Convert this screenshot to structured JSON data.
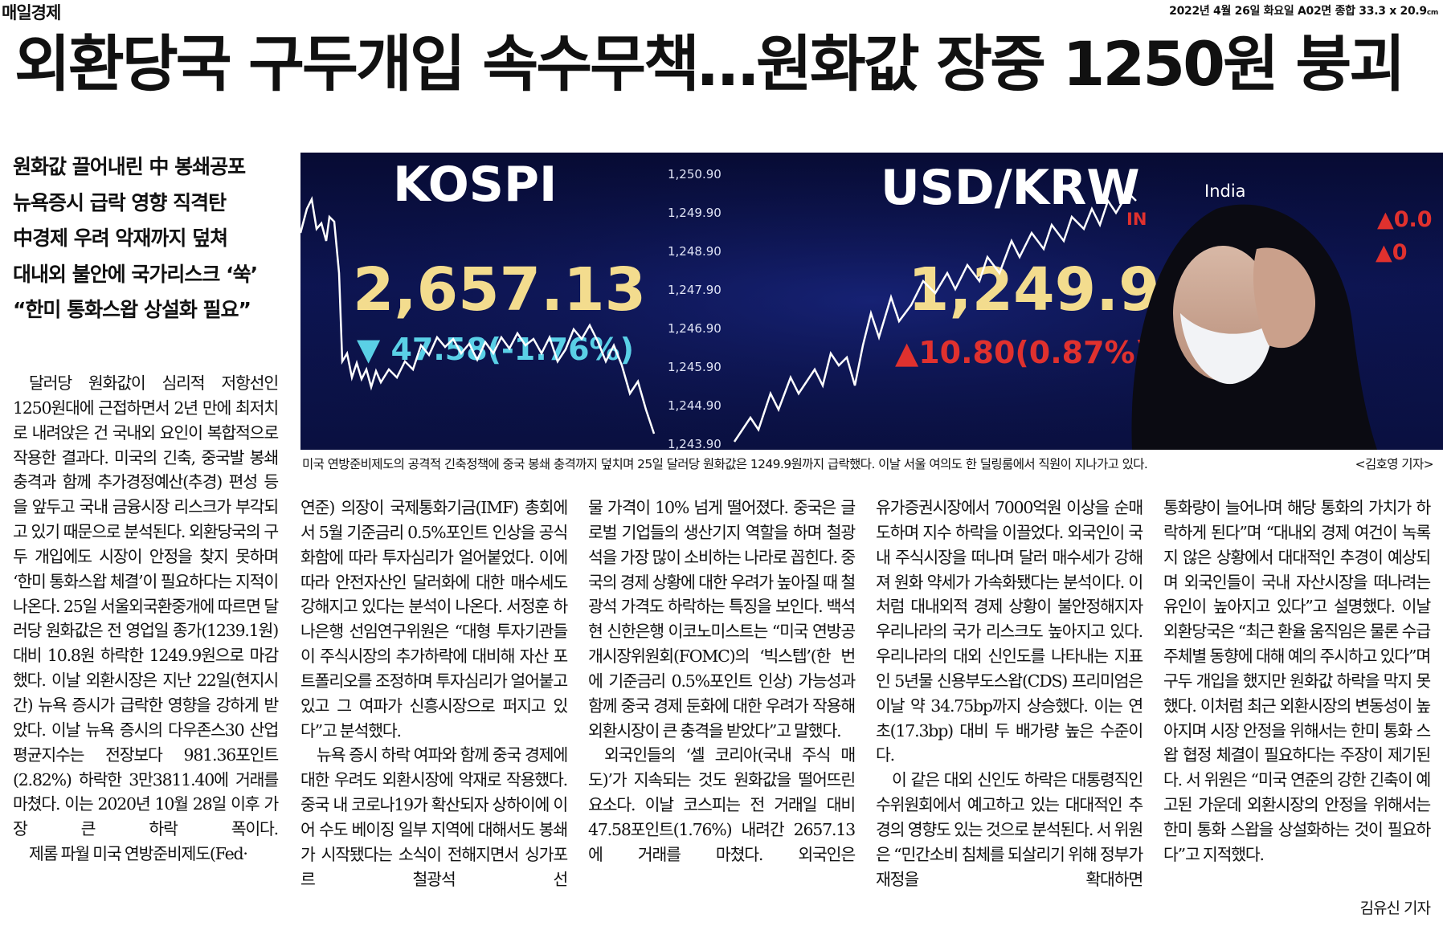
{
  "masthead": {
    "logo": "매일경제",
    "dateline": "2022년 4월 26일 화요일 A02면 종합 33.3 x 20.9",
    "dateline_unit": "cm"
  },
  "headline": "외환당국 구두개입 속수무책…원화값 장중 1250원 붕괴",
  "subheads": [
    "원화값 끌어내린 中 봉쇄공포",
    "뉴욕증시 급락 영향 직격탄",
    "中경제 우려 악재까지 덮쳐",
    "대내외 불안에 국가리스크 ‘쑥’",
    "“한미 통화스왑 상설화 필요”"
  ],
  "photo": {
    "kospi_label": "KOSPI",
    "kospi_value": "2,657.13",
    "kospi_change": "▼ 47.58(-1.76%)",
    "usdkrw_label": "USD/KRW",
    "usdkrw_value": "1,249.9",
    "usdkrw_change": "▲10.80(0.87%)",
    "axis_ticks": [
      "1,250.90",
      "1,249.90",
      "1,248.90",
      "1,247.90",
      "1,246.90",
      "1,245.90",
      "1,244.90",
      "1,243.90"
    ],
    "side_label": "India",
    "side_label_partial": "IN",
    "side_value_1": "▲0.0",
    "side_value_2": "▲0",
    "colors": {
      "background": "#0a1040",
      "value_yellow": "#f3dc8e",
      "down_cyan": "#5ad0e6",
      "up_red": "#e0312e"
    }
  },
  "caption": {
    "text": "미국 연방준비제도의 공격적 긴축정책에 중국 봉쇄 충격까지 덮치며 25일 달러당 원화값은 1249.9원까지 급락했다. 이날 서울 여의도 한 딜링룸에서 직원이 지나가고 있다.",
    "credit": "<김호영 기자>"
  },
  "columns": [
    [
      {
        "text": "달러당 원화값이 심리적 저항선인 1250원대에 근접하면서 2년 만에 최저치로 내려앉은 건 국내외 요인이 복합적으로 작용한 결과다. 미국의 긴축, 중국발 봉쇄 충격과 함께 추가경정예산(추경) 편성 등을 앞두고 국내 금융시장 리스크가 부각되고 있기 때문으로 분석된다. 외환당국의 구두 개입에도 시장이 안정을 찾지 못하며 ‘한미 통화스왑 체결’이 필요하다는 지적이 나온다. 25일 서울외국환중개에 따르면 달러당 원화값은 전 영업일 종가(1239.1원) 대비 10.8원 하락한 1249.9원으로 마감했다. 이날 외환시장은 지난 22일(현지시간) 뉴욕 증시가 급락한 영향을 강하게 받았다. 이날 뉴욕 증시의 다우존스30 산업평균지수는 전장보다 981.36포인트(2.82%) 하락한 3만3811.40에 거래를 마쳤다. 이는 2020년 10월 28일 이후 가장 큰 하락 폭이다.",
        "indent": true
      },
      {
        "text": "제롬 파월 미국 연방준비제도(Fed·",
        "indent": true
      }
    ],
    [
      {
        "text": "연준) 의장이 국제통화기금(IMF) 총회에서 5월 기준금리 0.5%포인트 인상을 공식화함에 따라 투자심리가 얼어붙었다. 이에 따라 안전자산인 달러화에 대한 매수세도 강해지고 있다는 분석이 나온다. 서정훈 하나은행 선임연구위원은 “대형 투자기관들이 주식시장의 추가하락에 대비해 자산 포트폴리오를 조정하며 투자심리가 얼어붙고 있고 그 여파가 신흥시장으로 퍼지고 있다”고 분석했다.",
        "indent": false
      },
      {
        "text": "뉴욕 증시 하락 여파와 함께 중국 경제에 대한 우려도 외환시장에 악재로 작용했다. 중국 내 코로나19가 확산되자 상하이에 이어 수도 베이징 일부 지역에 대해서도 봉쇄가 시작됐다는 소식이 전해지면서 싱가포르 철광석 선",
        "indent": true
      }
    ],
    [
      {
        "text": "물 가격이 10% 넘게 떨어졌다. 중국은 글로벌 기업들의 생산기지 역할을 하며 철광석을 가장 많이 소비하는 나라로 꼽힌다. 중국의 경제 상황에 대한 우려가 높아질 때 철광석 가격도 하락하는 특징을 보인다. 백석현 신한은행 이코노미스트는 “미국 연방공개시장위원회(FOMC)의 ‘빅스텝’(한 번에 기준금리 0.5%포인트 인상) 가능성과 함께 중국 경제 둔화에 대한 우려가 작용해 외환시장이 큰 충격을 받았다”고 말했다.",
        "indent": false
      },
      {
        "text": "외국인들의 ‘셀 코리아(국내 주식 매도)’가 지속되는 것도 원화값을 떨어뜨린 요소다. 이날 코스피는 전 거래일 대비 47.58포인트(1.76%) 내려간 2657.13에 거래를 마쳤다. 외국인은",
        "indent": true
      }
    ],
    [
      {
        "text": "유가증권시장에서 7000억원 이상을 순매도하며 지수 하락을 이끌었다. 외국인이 국내 주식시장을 떠나며 달러 매수세가 강해져 원화 약세가 가속화됐다는 분석이다. 이처럼 대내외적 경제 상황이 불안정해지자 우리나라의 국가 리스크도 높아지고 있다. 우리나라의 대외 신인도를 나타내는 지표인 5년물 신용부도스왑(CDS) 프리미엄은 이날 약 34.75bp까지 상승했다. 이는 연초(17.3bp) 대비 두 배가량 높은 수준이다.",
        "indent": false
      },
      {
        "text": "이 같은 대외 신인도 하락은 대통령직인수위원회에서 예고하고 있는 대대적인 추경의 영향도 있는 것으로 분석된다. 서 위원은 “민간소비 침체를 되살리기 위해 정부가 재정을 확대하면",
        "indent": true
      }
    ],
    [
      {
        "text": "통화량이 늘어나며 해당 통화의 가치가 하락하게 된다”며 “대내외 경제 여건이 녹록지 않은 상황에서 대대적인 추경이 예상되며 외국인들이 국내 자산시장을 떠나려는 유인이 높아지고 있다”고 설명했다. 이날 외환당국은 “최근 환율 움직임은 물론 수급 주체별 동향에 대해 예의 주시하고 있다”며 구두 개입을 했지만 원화값 하락을 막지 못했다. 이처럼 최근 외환시장의 변동성이 높아지며 시장 안정을 위해서는 한미 통화 스왑 협정 체결이 필요하다는 주장이 제기된다. 서 위원은 “미국 연준의 강한 긴축이 예고된 가운데 외환시장의 안정을 위해서는 한미 통화 스왑을 상설화하는 것이 필요하다”고 지적했다.",
        "indent": false
      }
    ]
  ],
  "byline": "김유신 기자"
}
